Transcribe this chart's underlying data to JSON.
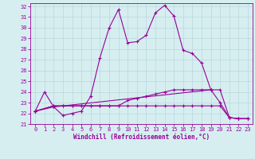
{
  "title": "",
  "xlabel": "Windchill (Refroidissement éolien,°C)",
  "background_color": "#d6eef0",
  "grid_color": "#b8d8dc",
  "line_color": "#990099",
  "xlim": [
    -0.5,
    23.5
  ],
  "ylim": [
    21,
    32.3
  ],
  "yticks": [
    21,
    22,
    23,
    24,
    25,
    26,
    27,
    28,
    29,
    30,
    31,
    32
  ],
  "xticks": [
    0,
    1,
    2,
    3,
    4,
    5,
    6,
    7,
    8,
    9,
    10,
    11,
    12,
    13,
    14,
    15,
    16,
    17,
    18,
    19,
    20,
    21,
    22,
    23
  ],
  "line1_x": [
    0,
    1,
    2,
    3,
    4,
    5,
    6,
    7,
    8,
    9,
    10,
    11,
    12,
    13,
    14,
    15,
    16,
    17,
    18,
    19
  ],
  "line1_y": [
    22.2,
    24.0,
    22.6,
    21.8,
    22.0,
    22.2,
    23.6,
    27.2,
    30.0,
    31.7,
    28.6,
    28.7,
    29.3,
    31.4,
    32.1,
    31.1,
    27.9,
    27.6,
    26.7,
    24.2
  ],
  "line2_x": [
    0,
    2,
    19,
    20,
    21,
    22,
    23
  ],
  "line2_y": [
    22.2,
    22.6,
    24.2,
    23.0,
    21.6,
    21.5,
    21.5
  ],
  "line3_x": [
    0,
    2,
    3,
    4,
    5,
    6,
    7,
    8,
    9,
    10,
    11,
    12,
    13,
    14,
    15,
    16,
    17,
    18,
    19,
    20,
    21,
    22,
    23
  ],
  "line3_y": [
    22.2,
    22.7,
    22.7,
    22.7,
    22.7,
    22.7,
    22.7,
    22.7,
    22.7,
    22.7,
    22.7,
    22.7,
    22.7,
    22.7,
    22.7,
    22.7,
    22.7,
    22.7,
    22.7,
    22.7,
    21.6,
    21.5,
    21.5
  ],
  "line4_x": [
    0,
    2,
    3,
    4,
    5,
    6,
    7,
    8,
    9,
    10,
    11,
    12,
    13,
    14,
    15,
    16,
    17,
    18,
    19,
    20,
    21,
    22,
    23
  ],
  "line4_y": [
    22.2,
    22.7,
    22.7,
    22.7,
    22.7,
    22.7,
    22.7,
    22.7,
    22.7,
    23.2,
    23.4,
    23.6,
    23.8,
    24.0,
    24.2,
    24.2,
    24.2,
    24.2,
    24.2,
    24.2,
    21.6,
    21.5,
    21.5
  ]
}
